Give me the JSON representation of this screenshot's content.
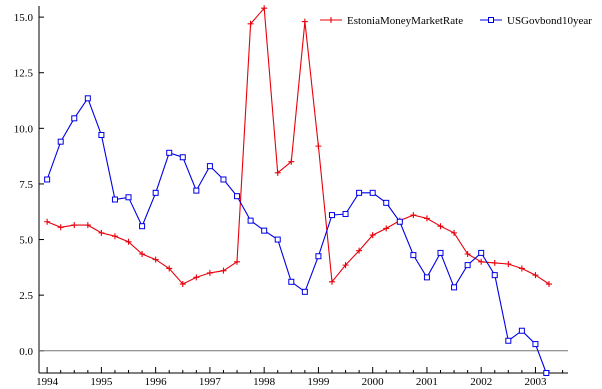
{
  "chart_data": {
    "type": "line",
    "title": "",
    "xlabel": "",
    "ylabel": "",
    "xlim": [
      1993.85,
      2003.6
    ],
    "ylim": [
      -1.0,
      15.5
    ],
    "x_ticks": [
      {
        "value": 1994,
        "label": "1994"
      },
      {
        "value": 1995,
        "label": "1995"
      },
      {
        "value": 1996,
        "label": "1996"
      },
      {
        "value": 1997,
        "label": "1997"
      },
      {
        "value": 1998,
        "label": "1998"
      },
      {
        "value": 1999,
        "label": "1999"
      },
      {
        "value": 2000,
        "label": "2000"
      },
      {
        "value": 2001,
        "label": "2001"
      },
      {
        "value": 2002,
        "label": "2002"
      },
      {
        "value": 2003,
        "label": "2003"
      }
    ],
    "y_ticks": [
      {
        "value": 0,
        "label": "0.0"
      },
      {
        "value": 2.5,
        "label": "2.5"
      },
      {
        "value": 5,
        "label": "5.0"
      },
      {
        "value": 7.5,
        "label": "7.5"
      },
      {
        "value": 10,
        "label": "10.0"
      },
      {
        "value": 12.5,
        "label": "12.5"
      },
      {
        "value": 15,
        "label": "15.0"
      }
    ],
    "zero_line": true,
    "grid": false,
    "legend_position": "top-right",
    "series": [
      {
        "name": "EstoniaMoneyMarketRate",
        "color": "#e8000b",
        "marker": "plus",
        "points": [
          [
            1994.0,
            5.8
          ],
          [
            1994.25,
            5.55
          ],
          [
            1994.5,
            5.65
          ],
          [
            1994.75,
            5.65
          ],
          [
            1995.0,
            5.3
          ],
          [
            1995.25,
            5.15
          ],
          [
            1995.5,
            4.9
          ],
          [
            1995.75,
            4.35
          ],
          [
            1996.0,
            4.1
          ],
          [
            1996.25,
            3.7
          ],
          [
            1996.5,
            3.0
          ],
          [
            1996.75,
            3.3
          ],
          [
            1997.0,
            3.5
          ],
          [
            1997.25,
            3.6
          ],
          [
            1997.5,
            4.0
          ],
          [
            1997.75,
            14.7
          ],
          [
            1998.0,
            15.4
          ],
          [
            1998.25,
            8.0
          ],
          [
            1998.5,
            8.5
          ],
          [
            1998.75,
            14.8
          ],
          [
            1999.0,
            9.2
          ],
          [
            1999.25,
            3.1
          ],
          [
            1999.5,
            3.85
          ],
          [
            1999.75,
            4.5
          ],
          [
            2000.0,
            5.2
          ],
          [
            2000.25,
            5.5
          ],
          [
            2000.5,
            5.85
          ],
          [
            2000.75,
            6.1
          ],
          [
            2001.0,
            5.95
          ],
          [
            2001.25,
            5.6
          ],
          [
            2001.5,
            5.3
          ],
          [
            2001.75,
            4.35
          ],
          [
            2002.0,
            4.0
          ],
          [
            2002.25,
            3.95
          ],
          [
            2002.5,
            3.9
          ],
          [
            2002.75,
            3.7
          ],
          [
            2003.0,
            3.4
          ],
          [
            2003.25,
            3.0
          ]
        ]
      },
      {
        "name": "USGovbond10year",
        "color": "#0000e6",
        "marker": "square",
        "points": [
          [
            1994.0,
            7.7
          ],
          [
            1994.25,
            9.4
          ],
          [
            1994.5,
            10.45
          ],
          [
            1994.75,
            11.35
          ],
          [
            1995.0,
            9.7
          ],
          [
            1995.25,
            6.8
          ],
          [
            1995.5,
            6.9
          ],
          [
            1995.75,
            5.6
          ],
          [
            1996.0,
            7.1
          ],
          [
            1996.25,
            8.9
          ],
          [
            1996.5,
            8.7
          ],
          [
            1996.75,
            7.2
          ],
          [
            1997.0,
            8.3
          ],
          [
            1997.25,
            7.7
          ],
          [
            1997.5,
            6.95
          ],
          [
            1997.75,
            5.85
          ],
          [
            1998.0,
            5.4
          ],
          [
            1998.25,
            5.0
          ],
          [
            1998.5,
            3.1
          ],
          [
            1998.75,
            2.65
          ],
          [
            1999.0,
            4.25
          ],
          [
            1999.25,
            6.1
          ],
          [
            1999.5,
            6.15
          ],
          [
            1999.75,
            7.1
          ],
          [
            2000.0,
            7.1
          ],
          [
            2000.25,
            6.65
          ],
          [
            2000.5,
            5.8
          ],
          [
            2000.75,
            4.3
          ],
          [
            2001.0,
            3.3
          ],
          [
            2001.25,
            4.4
          ],
          [
            2001.5,
            2.85
          ],
          [
            2001.75,
            3.85
          ],
          [
            2002.0,
            4.4
          ],
          [
            2002.25,
            3.4
          ],
          [
            2002.5,
            0.45
          ],
          [
            2002.75,
            0.9
          ],
          [
            2003.0,
            0.3
          ],
          [
            2003.2,
            -1.0
          ]
        ]
      }
    ]
  }
}
